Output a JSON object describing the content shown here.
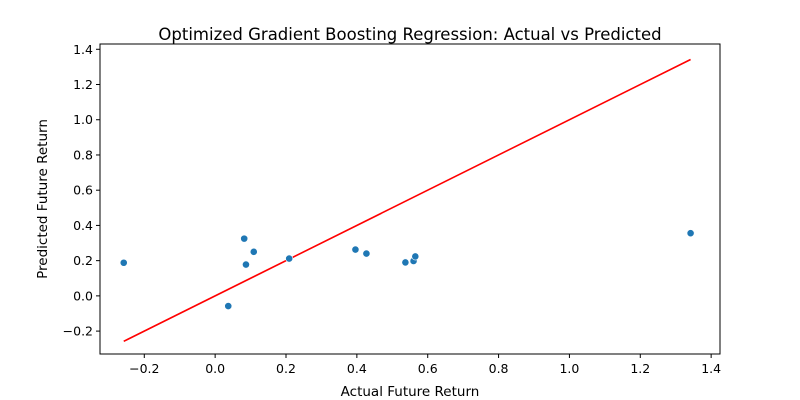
{
  "chart_data": {
    "type": "scatter",
    "title": "Optimized Gradient Boosting Regression: Actual vs Predicted",
    "xlabel": "Actual Future Return",
    "ylabel": "Predicted Future Return",
    "xlim": [
      -0.325,
      1.425
    ],
    "ylim": [
      -0.33,
      1.43
    ],
    "xticks": [
      -0.2,
      0.0,
      0.2,
      0.4,
      0.6,
      0.8,
      1.0,
      1.2,
      1.4
    ],
    "yticks": [
      -0.2,
      0.0,
      0.2,
      0.4,
      0.6,
      0.8,
      1.0,
      1.2,
      1.4
    ],
    "xtick_labels": [
      "−0.2",
      "0.0",
      "0.2",
      "0.4",
      "0.6",
      "0.8",
      "1.0",
      "1.2",
      "1.4"
    ],
    "ytick_labels": [
      "−0.2",
      "0.0",
      "0.2",
      "0.4",
      "0.6",
      "0.8",
      "1.0",
      "1.2",
      "1.4"
    ],
    "grid": false,
    "points": [
      {
        "x": -0.258,
        "y": 0.188
      },
      {
        "x": 0.037,
        "y": -0.058
      },
      {
        "x": 0.082,
        "y": 0.325
      },
      {
        "x": 0.087,
        "y": 0.178
      },
      {
        "x": 0.109,
        "y": 0.25
      },
      {
        "x": 0.209,
        "y": 0.212
      },
      {
        "x": 0.396,
        "y": 0.263
      },
      {
        "x": 0.427,
        "y": 0.24
      },
      {
        "x": 0.537,
        "y": 0.19
      },
      {
        "x": 0.56,
        "y": 0.198
      },
      {
        "x": 0.565,
        "y": 0.224
      },
      {
        "x": 1.342,
        "y": 0.356
      }
    ],
    "reference_line": {
      "x": [
        -0.258,
        1.342
      ],
      "y": [
        -0.258,
        1.342
      ]
    },
    "colors": {
      "points": "#1f77b4",
      "reference_line": "#ff0000",
      "axes": "#000000"
    }
  }
}
